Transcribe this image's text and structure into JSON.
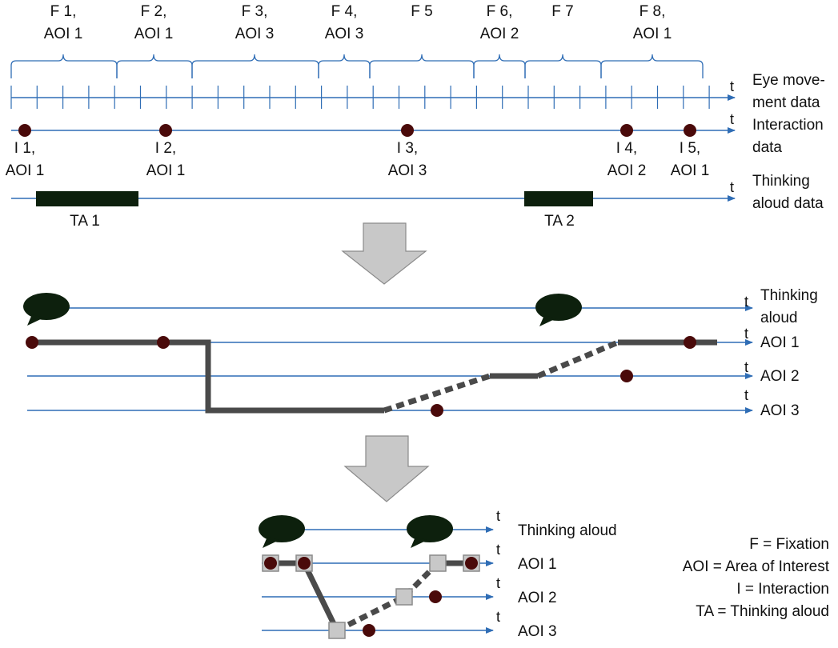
{
  "colors": {
    "timeline": "#2f6db5",
    "interaction_dot": "#4a0a0a",
    "bar": "#0d200d",
    "path": "#4a4a4a",
    "arrow_fill": "#c8c8c8",
    "arrow_stroke": "#8a8a8a",
    "marker_fill": "#c8c8c8",
    "bubble": "#0d200d"
  },
  "axis_symbol": "t",
  "top": {
    "fixations": [
      {
        "line1": "F 1,",
        "line2": "AOI 1"
      },
      {
        "line1": "F 2,",
        "line2": "AOI 1"
      },
      {
        "line1": "F 3,",
        "line2": "AOI 3"
      },
      {
        "line1": "F 4,",
        "line2": "AOI 3"
      },
      {
        "line1": "F 5",
        "line2": ""
      },
      {
        "line1": "F 6,",
        "line2": "AOI 2"
      },
      {
        "line1": "F 7",
        "line2": ""
      },
      {
        "line1": "F 8,",
        "line2": "AOI 1"
      }
    ],
    "eye_label": [
      "Eye move-",
      "ment data"
    ],
    "interaction_label": [
      "Interaction",
      "data"
    ],
    "thinking_label": [
      "Thinking",
      "aloud data"
    ],
    "interactions": [
      {
        "line1": "I 1,",
        "line2": "AOI 1"
      },
      {
        "line1": "I 2,",
        "line2": "AOI 1"
      },
      {
        "line1": "I 3,",
        "line2": "AOI 3"
      },
      {
        "line1": "I 4,",
        "line2": "AOI 2"
      },
      {
        "line1": "I 5,",
        "line2": "AOI 1"
      }
    ],
    "thinking_segments": [
      "TA 1",
      "TA 2"
    ]
  },
  "middle": {
    "thinking_label": [
      "Thinking",
      "aloud"
    ],
    "aoi_labels": [
      "AOI 1",
      "AOI 2",
      "AOI 3"
    ]
  },
  "bottom": {
    "thinking_label": "Thinking aloud",
    "aoi_labels": [
      "AOI 1",
      "AOI 2",
      "AOI 3"
    ]
  },
  "legend": [
    "F = Fixation",
    "AOI = Area of Interest",
    "I = Interaction",
    "TA = Thinking aloud"
  ]
}
